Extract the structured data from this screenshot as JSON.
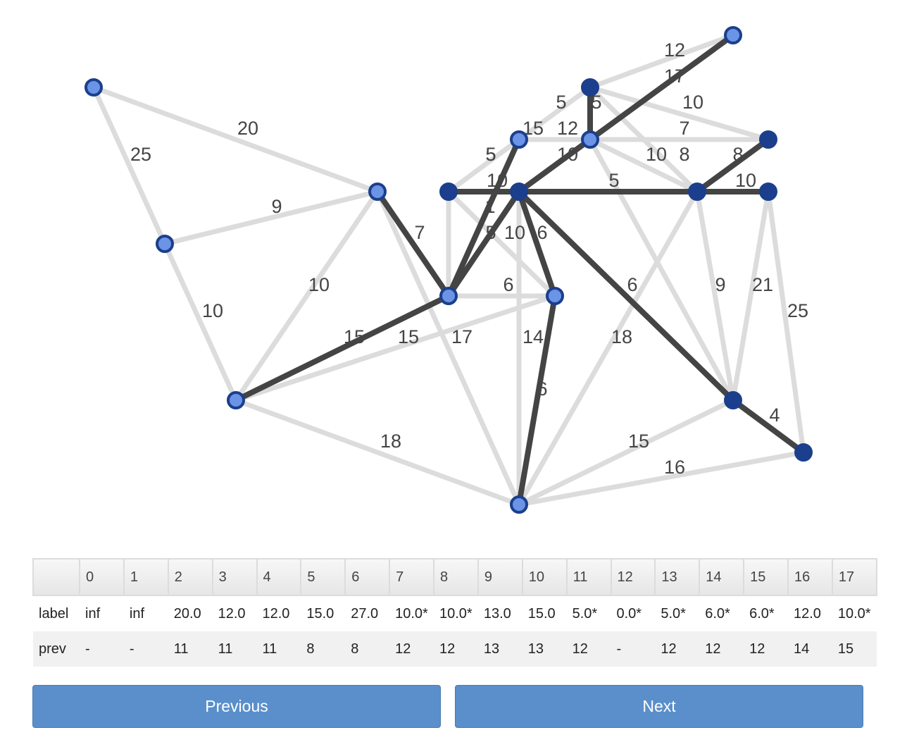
{
  "graph": {
    "colors": {
      "edge_default": "#dcdcdc",
      "edge_tree": "#444444",
      "node_fill": "#6b93e6",
      "node_stroke": "#1b3f8c",
      "node_done": "#1b3f8c"
    },
    "nodes": [
      {
        "id": "n0",
        "done": false
      },
      {
        "id": "n1",
        "done": false
      },
      {
        "id": "n2",
        "done": false
      },
      {
        "id": "n3",
        "done": false
      },
      {
        "id": "n4",
        "done": false
      },
      {
        "id": "n5",
        "done": false
      },
      {
        "id": "n6",
        "done": false
      },
      {
        "id": "n7",
        "done": true
      },
      {
        "id": "n8",
        "done": true
      },
      {
        "id": "n9",
        "done": false
      },
      {
        "id": "n10",
        "done": false
      },
      {
        "id": "n11",
        "done": true
      },
      {
        "id": "n12",
        "done": true
      },
      {
        "id": "n13",
        "done": true
      },
      {
        "id": "n14",
        "done": true
      },
      {
        "id": "n15",
        "done": true
      },
      {
        "id": "n16",
        "done": false
      },
      {
        "id": "n17",
        "done": true
      }
    ],
    "edges": [
      {
        "a": "n0",
        "b": "n2",
        "w": "20",
        "tree": false
      },
      {
        "a": "n0",
        "b": "n1",
        "w": "25",
        "tree": false
      },
      {
        "a": "n1",
        "b": "n2",
        "w": "9",
        "tree": false
      },
      {
        "a": "n1",
        "b": "n3",
        "w": "10",
        "tree": false
      },
      {
        "a": "n2",
        "b": "n3",
        "w": "10",
        "tree": false
      },
      {
        "a": "n2",
        "b": "n4",
        "w": "7",
        "tree": true
      },
      {
        "a": "n2",
        "b": "n5",
        "w": "17",
        "tree": false
      },
      {
        "a": "n3",
        "b": "n4",
        "w": "15",
        "tree": true
      },
      {
        "a": "n3",
        "b": "n6",
        "w": "15",
        "tree": false
      },
      {
        "a": "n3",
        "b": "n5",
        "w": "18",
        "tree": false
      },
      {
        "a": "n4",
        "b": "n6",
        "w": "6",
        "tree": false
      },
      {
        "a": "n4",
        "b": "n7",
        "w": "10",
        "tree": false
      },
      {
        "a": "n4",
        "b": "n8",
        "w": "5",
        "tree": true
      },
      {
        "a": "n4",
        "b": "n9",
        "w": "5",
        "tree": true
      },
      {
        "a": "n7",
        "b": "n8",
        "w": "10",
        "tree": true
      },
      {
        "a": "n7",
        "b": "n9",
        "w": "5",
        "tree": false
      },
      {
        "a": "n7",
        "b": "n6",
        "w": "1",
        "tree": false
      },
      {
        "a": "n8",
        "b": "n6",
        "w": "6",
        "tree": true
      },
      {
        "a": "n8",
        "b": "n5",
        "w": "14",
        "tree": false
      },
      {
        "a": "n6",
        "b": "n5",
        "w": "6",
        "tree": true
      },
      {
        "a": "n8",
        "b": "n10",
        "w": "10",
        "tree": true
      },
      {
        "a": "n9",
        "b": "n10",
        "w": "12",
        "tree": false
      },
      {
        "a": "n9",
        "b": "n11",
        "w": "15",
        "tree": false
      },
      {
        "a": "n10",
        "b": "n11",
        "w": "5",
        "tree": true
      },
      {
        "a": "n11",
        "b": "n14",
        "w": "5",
        "tree": false
      },
      {
        "a": "n11",
        "b": "n16",
        "w": "12",
        "tree": false
      },
      {
        "a": "n10",
        "b": "n16",
        "w": "17",
        "tree": true
      },
      {
        "a": "n11",
        "b": "n12",
        "w": "10",
        "tree": false
      },
      {
        "a": "n10",
        "b": "n12",
        "w": "7",
        "tree": false
      },
      {
        "a": "n10",
        "b": "n14",
        "w": "10",
        "tree": false
      },
      {
        "a": "n10",
        "b": "n15",
        "w": "8",
        "tree": false
      },
      {
        "a": "n14",
        "b": "n12",
        "w": "8",
        "tree": true
      },
      {
        "a": "n8",
        "b": "n14",
        "w": "5",
        "tree": true
      },
      {
        "a": "n14",
        "b": "n13",
        "w": "10",
        "tree": true
      },
      {
        "a": "n8",
        "b": "n15",
        "w": "6",
        "tree": true
      },
      {
        "a": "n14",
        "b": "n15",
        "w": "9",
        "tree": false
      },
      {
        "a": "n14",
        "b": "n5",
        "w": "18",
        "tree": false
      },
      {
        "a": "n13",
        "b": "n15",
        "w": "21",
        "tree": false
      },
      {
        "a": "n13",
        "b": "n17",
        "w": "25",
        "tree": false
      },
      {
        "a": "n15",
        "b": "n17",
        "w": "4",
        "tree": true
      },
      {
        "a": "n15",
        "b": "n5",
        "w": "15",
        "tree": false
      },
      {
        "a": "n17",
        "b": "n5",
        "w": "16",
        "tree": false
      }
    ]
  },
  "table": {
    "headers": [
      "",
      "0",
      "1",
      "2",
      "3",
      "4",
      "5",
      "6",
      "7",
      "8",
      "9",
      "10",
      "11",
      "12",
      "13",
      "14",
      "15",
      "16",
      "17"
    ],
    "rows": [
      {
        "name": "label",
        "cells": [
          "inf",
          "inf",
          "20.0",
          "12.0",
          "12.0",
          "15.0",
          "27.0",
          "10.0*",
          "10.0*",
          "13.0",
          "15.0",
          "5.0*",
          "0.0*",
          "5.0*",
          "6.0*",
          "6.0*",
          "12.0",
          "10.0*"
        ]
      },
      {
        "name": "prev",
        "cells": [
          "-",
          "-",
          "11",
          "11",
          "11",
          "8",
          "8",
          "12",
          "12",
          "13",
          "13",
          "12",
          "-",
          "12",
          "12",
          "12",
          "14",
          "15"
        ]
      }
    ]
  },
  "buttons": {
    "previous": "Previous",
    "next": "Next"
  }
}
